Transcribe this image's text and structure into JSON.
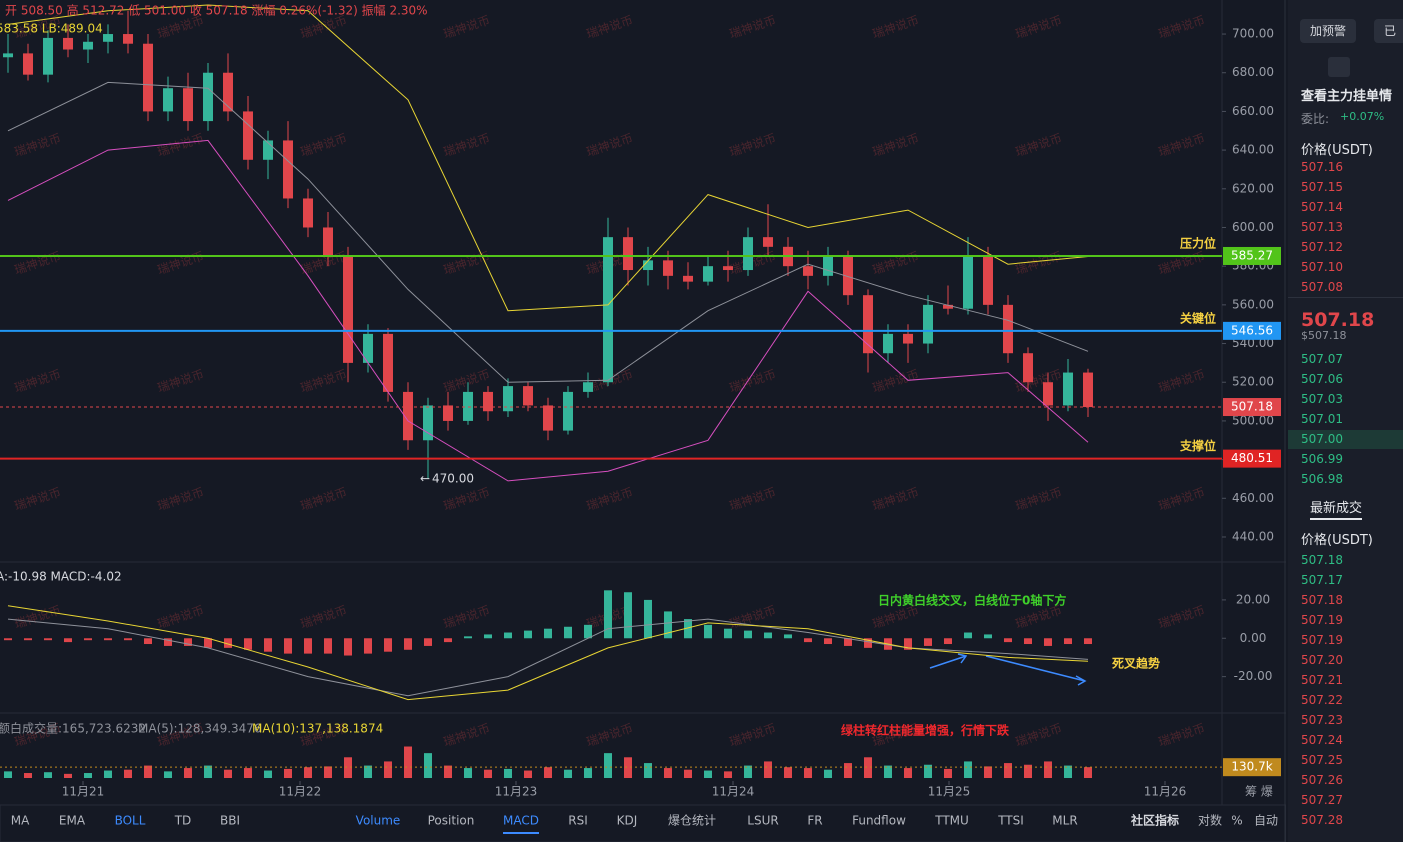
{
  "header": {
    "ohlc": "开 508.50 高 512.72 低 501.00 收 507.18 涨幅 0.26%(-1.32) 振幅 2.30%",
    "boll": "583.58 LB:489.04",
    "macd": "A:-10.98 MACD:-4.02",
    "vol": "额白成交量:165,723.6232",
    "ma5": "MA(5):128,349.3476",
    "ma10": "MA(10):137,138.1874"
  },
  "watermark": "瑞神说币",
  "chart_data": [
    {
      "type": "candlestick",
      "xlim": [
        -0.4,
        60.6
      ],
      "ylim": [
        428.1,
        717.6
      ],
      "yticks": [
        {
          "value": 700,
          "label": "700.00"
        },
        {
          "value": 680,
          "label": "680.00"
        },
        {
          "value": 660,
          "label": "660.00"
        },
        {
          "value": 640,
          "label": "640.00"
        },
        {
          "value": 620,
          "label": "620.00"
        },
        {
          "value": 600,
          "label": "600.00"
        },
        {
          "value": 580,
          "label": "580.00"
        },
        {
          "value": 560,
          "label": "560.00"
        },
        {
          "value": 540,
          "label": "540.00"
        },
        {
          "value": 520,
          "label": "520.00"
        },
        {
          "value": 500,
          "label": "500.00"
        },
        {
          "value": 480,
          "label": "480.00"
        },
        {
          "value": 460,
          "label": "460.00"
        },
        {
          "value": 440,
          "label": "440.00"
        }
      ],
      "up_color": "#35b59a",
      "down_color": "#e0464b",
      "ohlc": [
        [
          688,
          700,
          680,
          690
        ],
        [
          690,
          695,
          676,
          679
        ],
        [
          679,
          702,
          675,
          698
        ],
        [
          698,
          705,
          688,
          692
        ],
        [
          692,
          700,
          685,
          696
        ],
        [
          696,
          705,
          690,
          700
        ],
        [
          700,
          712,
          690,
          695
        ],
        [
          695,
          700,
          655,
          660
        ],
        [
          660,
          678,
          655,
          672
        ],
        [
          672,
          680,
          650,
          655
        ],
        [
          655,
          685,
          650,
          680
        ],
        [
          680,
          690,
          655,
          660
        ],
        [
          660,
          668,
          630,
          635
        ],
        [
          635,
          650,
          625,
          645
        ],
        [
          645,
          655,
          610,
          615
        ],
        [
          615,
          620,
          595,
          600
        ],
        [
          600,
          608,
          580,
          585
        ],
        [
          585,
          590,
          520,
          530
        ],
        [
          530,
          550,
          525,
          545
        ],
        [
          545,
          548,
          510,
          515
        ],
        [
          515,
          520,
          485,
          490
        ],
        [
          490,
          512,
          470,
          508
        ],
        [
          508,
          515,
          495,
          500
        ],
        [
          500,
          520,
          498,
          515
        ],
        [
          515,
          518,
          500,
          505
        ],
        [
          505,
          522,
          502,
          518
        ],
        [
          518,
          520,
          505,
          508
        ],
        [
          508,
          512,
          490,
          495
        ],
        [
          495,
          518,
          493,
          515
        ],
        [
          515,
          525,
          512,
          520
        ],
        [
          520,
          605,
          518,
          595
        ],
        [
          595,
          600,
          570,
          578
        ],
        [
          578,
          590,
          570,
          583
        ],
        [
          583,
          588,
          568,
          575
        ],
        [
          575,
          582,
          568,
          572
        ],
        [
          572,
          585,
          570,
          580
        ],
        [
          580,
          588,
          572,
          578
        ],
        [
          578,
          600,
          575,
          595
        ],
        [
          595,
          612,
          585,
          590
        ],
        [
          590,
          595,
          575,
          580
        ],
        [
          580,
          588,
          568,
          575
        ],
        [
          575,
          590,
          570,
          585
        ],
        [
          585,
          588,
          560,
          565
        ],
        [
          565,
          568,
          525,
          535
        ],
        [
          535,
          550,
          530,
          545
        ],
        [
          545,
          550,
          530,
          540
        ],
        [
          540,
          565,
          535,
          560
        ],
        [
          560,
          570,
          555,
          558
        ],
        [
          558,
          595,
          555,
          585
        ],
        [
          585,
          590,
          555,
          560
        ],
        [
          560,
          565,
          530,
          535
        ],
        [
          535,
          538,
          515,
          520
        ],
        [
          520,
          525,
          500,
          508
        ],
        [
          508,
          532,
          505,
          525
        ],
        [
          525,
          527,
          502,
          507.18
        ]
      ],
      "boll": {
        "x": [
          0,
          5,
          10,
          15,
          20,
          25,
          30,
          35,
          40,
          45,
          50,
          54
        ],
        "upper": [
          705,
          712,
          715,
          712,
          666,
          557,
          560,
          617,
          600,
          609,
          581,
          585
        ],
        "middle": [
          650,
          675,
          672,
          625,
          568,
          520,
          521,
          557,
          581,
          565,
          552,
          536
        ],
        "lower": [
          614,
          640,
          645,
          575,
          500,
          469,
          474,
          490,
          567,
          521,
          525,
          489
        ],
        "colors": [
          "#e8d534",
          "#8e919a",
          "#d64fbf"
        ]
      },
      "levels": [
        {
          "name": "压力位",
          "value": 585.27,
          "color": "#52c41a"
        },
        {
          "name": "关键位",
          "value": 546.56,
          "color": "#2196f3"
        },
        {
          "name": "支撑位",
          "value": 480.51,
          "color": "#e02424"
        }
      ],
      "level_text_color": "#f5d142",
      "last": {
        "value": 507.18,
        "color": "#e0464b"
      },
      "low_marker": {
        "x": 20.6,
        "value": 470,
        "label": "470.00"
      }
    },
    {
      "type": "macd",
      "xlim": [
        -0.4,
        60.6
      ],
      "ylim": [
        -37.4,
        38.2
      ],
      "yticks": [
        {
          "value": 20,
          "label": "20.00"
        },
        {
          "value": 0,
          "label": "0.00"
        },
        {
          "value": -20,
          "label": "-20.00"
        }
      ],
      "histogram": [
        -1,
        -1,
        -1,
        -2,
        -1,
        -1,
        -1,
        -3,
        -4,
        -4,
        -5,
        -5,
        -6,
        -7,
        -8,
        -8,
        -8,
        -9,
        -8,
        -7,
        -6,
        -4,
        -2,
        1,
        2,
        3,
        4,
        5,
        6,
        7,
        25,
        24,
        20,
        14,
        10,
        7,
        5,
        4,
        3,
        2,
        -2,
        -3,
        -4,
        -5,
        -6,
        -6,
        -4,
        -3,
        3,
        2,
        -2,
        -3,
        -4,
        -3,
        -3
      ],
      "up_color": "#35b59a",
      "down_color": "#e0464b",
      "lines": {
        "x": [
          0,
          5,
          10,
          15,
          20,
          25,
          30,
          35,
          40,
          45,
          50,
          54
        ],
        "dif": [
          10,
          5,
          -5,
          -20,
          -30,
          -20,
          5,
          10,
          3,
          -5,
          -8,
          -11
        ],
        "dea": [
          17,
          9,
          0,
          -15,
          -32,
          -27,
          -5,
          8,
          5,
          -5,
          -10,
          -12
        ],
        "colors": [
          "#8e919a",
          "#e8d534"
        ]
      },
      "annotations": [
        {
          "text": "日内黄白线交叉，白线位于0轴下方",
          "color": "#3fd02a"
        },
        {
          "text": "死叉趋势",
          "color": "#f5d142"
        }
      ]
    },
    {
      "type": "volume",
      "xlim": [
        -0.4,
        60.6
      ],
      "ylim": [
        0,
        700
      ],
      "values": [
        80,
        60,
        70,
        50,
        60,
        90,
        100,
        150,
        80,
        120,
        150,
        100,
        120,
        90,
        110,
        130,
        140,
        250,
        150,
        200,
        380,
        300,
        150,
        120,
        100,
        110,
        90,
        130,
        100,
        120,
        300,
        250,
        180,
        120,
        100,
        90,
        80,
        150,
        200,
        130,
        120,
        100,
        180,
        250,
        150,
        120,
        160,
        110,
        200,
        140,
        180,
        160,
        200,
        150,
        130.7
      ],
      "current": {
        "value": 130.7,
        "label": "130.7k",
        "color": "#c08a1e"
      },
      "xticks": [
        {
          "value": 3.75,
          "label": "11月21"
        },
        {
          "value": 14.6,
          "label": "11月22"
        },
        {
          "value": 25.4,
          "label": "11月23"
        },
        {
          "value": 36.25,
          "label": "11月24"
        },
        {
          "value": 47.05,
          "label": "11月25"
        },
        {
          "value": 57.85,
          "label": "11月26"
        }
      ],
      "annotation": {
        "text": "绿柱转红柱能量增强，行情下跌",
        "color": "#f0282d"
      }
    }
  ],
  "corner": "筹 爆",
  "tabs_left": [
    "MA",
    "EMA",
    "BOLL",
    "TD",
    "BBI"
  ],
  "active_left": [
    2
  ],
  "tabs_right": [
    "Volume",
    "Position",
    "MACD",
    "RSI",
    "KDJ",
    "爆仓统计",
    "LSUR",
    "FR",
    "Fundflow",
    "TTMU",
    "TTSI",
    "MLR"
  ],
  "active_right": [
    0,
    2
  ],
  "tools": [
    "社区指标",
    "对数",
    "%",
    "自动"
  ],
  "side": {
    "buttons": [
      "加预警",
      "已"
    ],
    "title": "查看主力挂单情",
    "ratio_label": "委比:",
    "ratio": "+0.07%",
    "price_header": "价格(USDT)",
    "asks": [
      "507.16",
      "507.15",
      "507.14",
      "507.13",
      "507.12",
      "507.10",
      "507.08"
    ],
    "mid": "507.18",
    "mid_usd": "$507.18",
    "bids": [
      "507.07",
      "507.06",
      "507.03",
      "507.01",
      "507.00",
      "506.99",
      "506.98"
    ],
    "trades_title": "最新成交",
    "trades_header": "价格(USDT)",
    "trades": [
      "507.18",
      "507.17",
      "507.18",
      "507.19",
      "507.19",
      "507.20",
      "507.21",
      "507.22",
      "507.23",
      "507.24",
      "507.25",
      "507.26",
      "507.27",
      "507.28"
    ],
    "trade_colors": [
      "#2ebd85",
      "#2ebd85",
      "#e0464b",
      "#e0464b",
      "#e0464b",
      "#e0464b",
      "#e0464b",
      "#e0464b",
      "#e0464b",
      "#e0464b",
      "#e0464b",
      "#e0464b",
      "#e0464b",
      "#e0464b"
    ]
  }
}
